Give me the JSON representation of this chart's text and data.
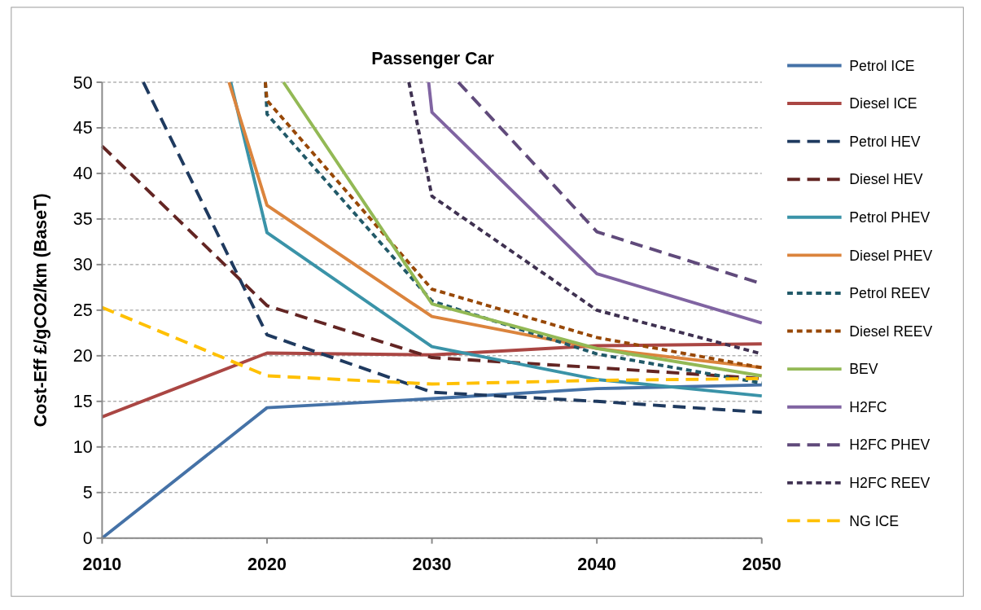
{
  "chart_data": {
    "type": "line",
    "title": "Passenger Car",
    "ylabel": "Cost-Eff £/gCO2/km (BaseT)",
    "xlim": [
      2010,
      2050
    ],
    "xticks": [
      2010,
      2020,
      2030,
      2040,
      2050
    ],
    "ylim": [
      0,
      50
    ],
    "yticks": [
      0,
      5,
      10,
      15,
      20,
      25,
      30,
      35,
      40,
      45,
      50
    ],
    "grid": "y",
    "legend": "right",
    "x": [
      2010,
      2020,
      2030,
      2040,
      2050
    ],
    "series": [
      {
        "name": "Petrol ICE",
        "color": "#4572a7",
        "line_style": "solid",
        "values": [
          0,
          14.3,
          15.3,
          16.4,
          16.8
        ]
      },
      {
        "name": "Diesel ICE",
        "color": "#aa4643",
        "line_style": "solid",
        "values": [
          13.3,
          20.3,
          20.1,
          21.1,
          21.3
        ]
      },
      {
        "name": "Petrol HEV",
        "color": "#1f3a5f",
        "line_style": "dashed",
        "x": [
          2012.5,
          2020,
          2030,
          2040,
          2050
        ],
        "values": [
          50,
          22.3,
          16,
          15,
          13.8
        ]
      },
      {
        "name": "Diesel HEV",
        "color": "#632523",
        "line_style": "dashed",
        "values": [
          43,
          25.5,
          19.8,
          18.7,
          17.5
        ]
      },
      {
        "name": "Petrol PHEV",
        "color": "#3a93a8",
        "line_style": "solid",
        "x": [
          2017.8,
          2020,
          2030,
          2040,
          2050
        ],
        "values": [
          50,
          33.5,
          21,
          17.4,
          15.6
        ]
      },
      {
        "name": "Diesel PHEV",
        "color": "#db843d",
        "line_style": "solid",
        "x": [
          2017.7,
          2020,
          2030,
          2040,
          2050
        ],
        "values": [
          50,
          36.5,
          24.3,
          20.8,
          18.7
        ]
      },
      {
        "name": "Petrol REEV",
        "color": "#215968",
        "line_style": "dotted",
        "x": [
          2019.9,
          2020,
          2030,
          2040,
          2050
        ],
        "values": [
          50,
          46.5,
          26,
          20.2,
          17
        ]
      },
      {
        "name": "Diesel REEV",
        "color": "#984807",
        "line_style": "dotted",
        "x": [
          2019.9,
          2020,
          2030,
          2040,
          2050
        ],
        "values": [
          50,
          48,
          27.3,
          22,
          18.7
        ]
      },
      {
        "name": "BEV",
        "color": "#93b955",
        "line_style": "solid",
        "x": [
          2021,
          2030,
          2040,
          2050
        ],
        "values": [
          50,
          25.7,
          20.8,
          17.8
        ]
      },
      {
        "name": "H2FC",
        "color": "#8064a2",
        "line_style": "solid",
        "x": [
          2029.8,
          2030,
          2040,
          2050
        ],
        "values": [
          50,
          46.7,
          29,
          23.6
        ]
      },
      {
        "name": "H2FC PHEV",
        "color": "#604a7b",
        "line_style": "dashed",
        "x": [
          2031.6,
          2040,
          2050
        ],
        "values": [
          50,
          33.6,
          27.9
        ]
      },
      {
        "name": "H2FC REEV",
        "color": "#3f3151",
        "line_style": "dotted",
        "x": [
          2028.6,
          2030,
          2040,
          2050
        ],
        "values": [
          50,
          37.5,
          25,
          20.2
        ]
      },
      {
        "name": "NG ICE",
        "color": "#ffc000",
        "line_style": "dashed",
        "values": [
          25.3,
          17.8,
          16.9,
          17.3,
          17.5
        ]
      }
    ]
  }
}
